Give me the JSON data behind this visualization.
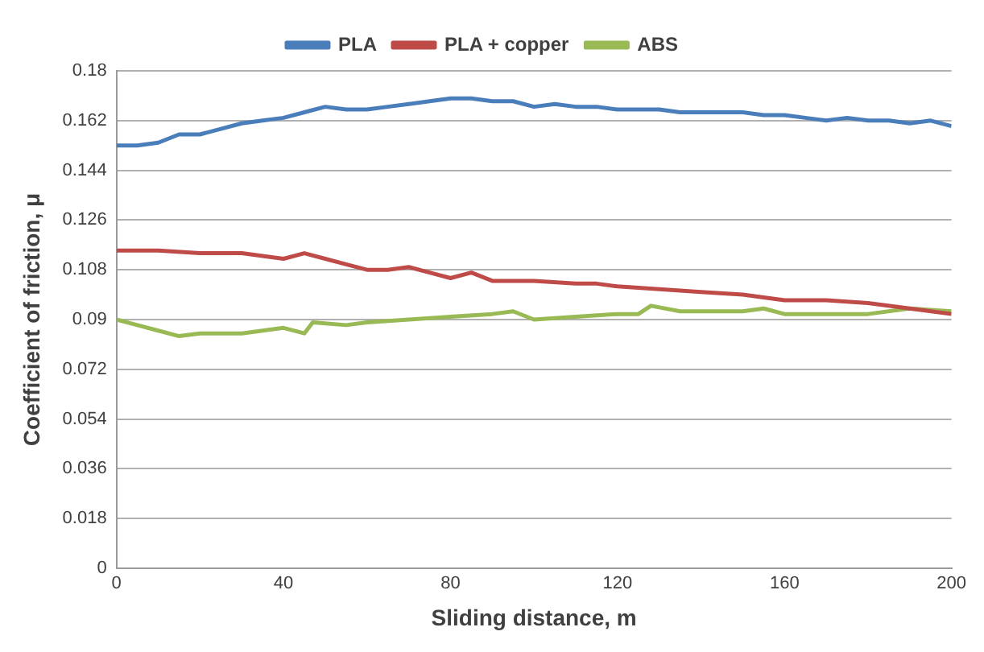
{
  "chart_data": {
    "type": "line",
    "xlabel": "Sliding distance, m",
    "ylabel": "Coefficient of friction, μ",
    "xlim": [
      0,
      200
    ],
    "xticks": [
      0,
      40,
      80,
      120,
      160,
      200
    ],
    "ylim": [
      0,
      0.18
    ],
    "yticks": [
      0,
      0.018,
      0.036,
      0.054,
      0.072,
      0.09,
      0.108,
      0.126,
      0.144,
      0.162,
      0.18
    ],
    "grid": "y",
    "legend": "top",
    "marker": "none",
    "line_style": "solid",
    "series": [
      {
        "name": "PLA",
        "color": "#4a7ebb",
        "x": [
          0,
          5,
          10,
          15,
          20,
          25,
          30,
          35,
          40,
          45,
          50,
          55,
          60,
          65,
          70,
          75,
          80,
          85,
          90,
          95,
          100,
          105,
          110,
          115,
          120,
          125,
          130,
          135,
          140,
          145,
          150,
          155,
          160,
          165,
          170,
          175,
          180,
          185,
          190,
          195,
          200
        ],
        "values": [
          0.153,
          0.153,
          0.154,
          0.157,
          0.157,
          0.159,
          0.161,
          0.162,
          0.163,
          0.165,
          0.167,
          0.166,
          0.166,
          0.167,
          0.168,
          0.169,
          0.17,
          0.17,
          0.169,
          0.169,
          0.167,
          0.168,
          0.167,
          0.167,
          0.166,
          0.166,
          0.166,
          0.165,
          0.165,
          0.165,
          0.165,
          0.164,
          0.164,
          0.163,
          0.162,
          0.163,
          0.162,
          0.162,
          0.161,
          0.162,
          0.16
        ]
      },
      {
        "name": "PLA + copper",
        "color": "#be4b48",
        "x": [
          0,
          10,
          20,
          30,
          40,
          45,
          50,
          55,
          60,
          65,
          70,
          75,
          80,
          85,
          90,
          95,
          100,
          110,
          115,
          120,
          130,
          140,
          150,
          160,
          170,
          180,
          190,
          200
        ],
        "values": [
          0.115,
          0.115,
          0.114,
          0.114,
          0.112,
          0.114,
          0.112,
          0.11,
          0.108,
          0.108,
          0.109,
          0.107,
          0.105,
          0.107,
          0.104,
          0.104,
          0.104,
          0.103,
          0.103,
          0.102,
          0.101,
          0.1,
          0.099,
          0.097,
          0.097,
          0.096,
          0.094,
          0.092
        ]
      },
      {
        "name": "ABS",
        "color": "#98b954",
        "x": [
          0,
          5,
          10,
          15,
          20,
          30,
          40,
          45,
          47,
          55,
          60,
          70,
          80,
          90,
          95,
          100,
          110,
          120,
          125,
          128,
          135,
          140,
          150,
          155,
          160,
          170,
          180,
          190,
          200
        ],
        "values": [
          0.09,
          0.088,
          0.086,
          0.084,
          0.085,
          0.085,
          0.087,
          0.085,
          0.089,
          0.088,
          0.089,
          0.09,
          0.091,
          0.092,
          0.093,
          0.09,
          0.091,
          0.092,
          0.092,
          0.095,
          0.093,
          0.093,
          0.093,
          0.094,
          0.092,
          0.092,
          0.092,
          0.094,
          0.093
        ]
      }
    ]
  }
}
